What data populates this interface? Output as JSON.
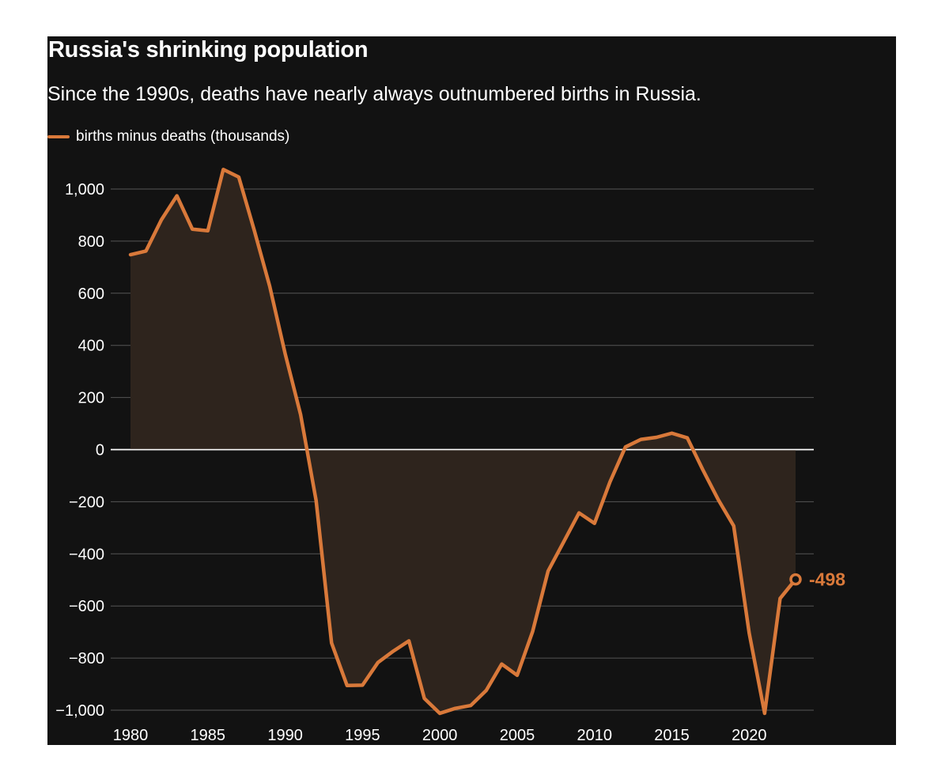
{
  "colors": {
    "background": "#121212",
    "line": "#d9793a",
    "area": "#2e241d",
    "text": "#ffffff",
    "grid": "#555555",
    "zero_line": "#ffffff"
  },
  "chart_data": {
    "type": "line",
    "title": "Russia's shrinking population",
    "subtitle": "Since the 1990s, deaths have nearly always outnumbered births in Russia.",
    "xlabel": "",
    "ylabel": "",
    "xlim": [
      1980,
      2023
    ],
    "ylim": [
      -1000,
      1000
    ],
    "xticks": [
      1980,
      1985,
      1990,
      1995,
      2000,
      2005,
      2010,
      2015,
      2020
    ],
    "xtick_labels": [
      "1980",
      "1985",
      "1990",
      "1995",
      "2000",
      "2005",
      "2010",
      "2015",
      "2020"
    ],
    "yticks": [
      1000,
      800,
      600,
      400,
      200,
      0,
      -200,
      -400,
      -600,
      -800,
      -1000
    ],
    "ytick_labels": [
      "1,000",
      "800",
      "600",
      "400",
      "200",
      "0",
      "−200",
      "−400",
      "−600",
      "−800",
      "−1,000"
    ],
    "grid": true,
    "legend": "top-left",
    "area_fill": true,
    "series": [
      {
        "name": "births minus deaths (thousands)",
        "x": [
          1980,
          1981,
          1982,
          1983,
          1984,
          1985,
          1986,
          1987,
          1988,
          1989,
          1990,
          1991,
          1992,
          1993,
          1994,
          1995,
          1996,
          1997,
          1998,
          1999,
          2000,
          2001,
          2002,
          2003,
          2004,
          2005,
          2006,
          2007,
          2008,
          2009,
          2010,
          2011,
          2012,
          2013,
          2014,
          2015,
          2016,
          2017,
          2018,
          2019,
          2020,
          2021,
          2022,
          2023
        ],
        "y": [
          748,
          762,
          882,
          974,
          846,
          840,
          1075,
          1046,
          842,
          627,
          368,
          134,
          -195,
          -742,
          -905,
          -904,
          -817,
          -773,
          -734,
          -955,
          -1012,
          -993,
          -982,
          -924,
          -823,
          -866,
          -698,
          -466,
          -355,
          -243,
          -283,
          -124,
          10,
          39,
          47,
          63,
          45,
          -77,
          -192,
          -293,
          -704,
          -1012,
          -571,
          -498
        ]
      }
    ],
    "annotations": [
      {
        "x": 2023,
        "y": -498,
        "label": "-498"
      }
    ]
  }
}
